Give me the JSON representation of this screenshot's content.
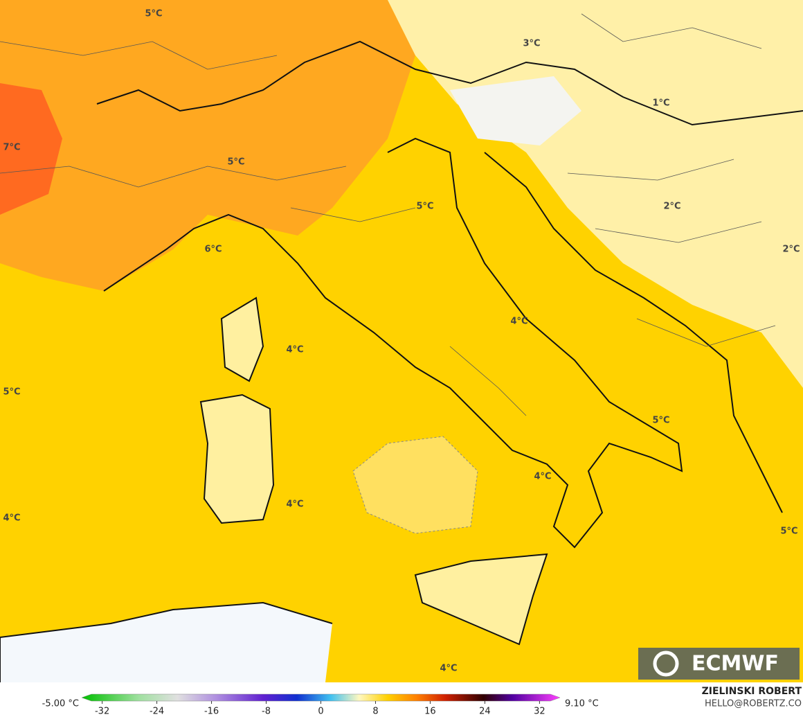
{
  "map": {
    "labels": [
      "5°C",
      "3°C",
      "1°C",
      "7°C",
      "5°C",
      "5°C",
      "2°C",
      "2°C",
      "6°C",
      "4°C",
      "4°C",
      "5°C",
      "5°C",
      "4°C",
      "4°C",
      "4°C",
      "5°C",
      "4°C"
    ],
    "colorbar": {
      "min_label": "-5.00 °C",
      "max_label": "9.10 °C",
      "lim": [
        -35,
        35
      ],
      "ticks": [
        -32,
        -24,
        -16,
        -8,
        0,
        8,
        16,
        24,
        32
      ]
    },
    "credit": {
      "author": "ZIELINSKI ROBERT",
      "email": "HELLO@ROBERTZ.CO"
    },
    "logo": "ECMWF"
  }
}
